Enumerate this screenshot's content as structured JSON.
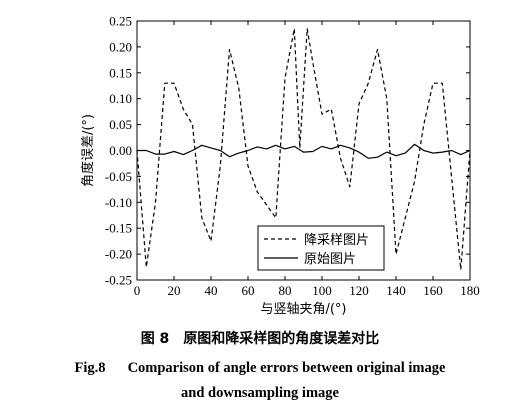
{
  "chart_data": {
    "type": "line",
    "xlabel": "与竖轴夹角/(°)",
    "ylabel": "角度误差/(°)",
    "xlim": [
      0,
      180
    ],
    "ylim": [
      -0.25,
      0.25
    ],
    "xticks": [
      0,
      20,
      40,
      60,
      80,
      100,
      120,
      140,
      160,
      180
    ],
    "yticks": [
      -0.25,
      -0.2,
      -0.15,
      -0.1,
      -0.05,
      0.0,
      0.05,
      0.1,
      0.15,
      0.2,
      0.25
    ],
    "ytick_labels": [
      "-0.25",
      "-0.20",
      "-0.15",
      "-0.10",
      "-0.05",
      "0.00",
      "0.05",
      "0.10",
      "0.15",
      "0.20",
      "0.25"
    ],
    "legend_position": "lower-right",
    "grid": false,
    "series": [
      {
        "name": "降采样图片",
        "style": "dashed",
        "color": "#000000",
        "x": [
          0,
          5,
          10,
          15,
          20,
          25,
          30,
          35,
          40,
          45,
          50,
          55,
          60,
          65,
          70,
          75,
          80,
          85,
          88,
          92,
          95,
          100,
          105,
          110,
          115,
          120,
          125,
          130,
          135,
          140,
          145,
          150,
          155,
          160,
          165,
          170,
          175,
          180
        ],
        "y": [
          0.0,
          -0.225,
          -0.1,
          0.13,
          0.13,
          0.08,
          0.05,
          -0.13,
          -0.175,
          -0.03,
          0.195,
          0.12,
          -0.03,
          -0.08,
          -0.105,
          -0.13,
          0.14,
          0.235,
          0.005,
          0.235,
          0.17,
          0.07,
          0.08,
          -0.015,
          -0.07,
          0.09,
          0.13,
          0.195,
          0.1,
          -0.2,
          -0.13,
          -0.06,
          0.05,
          0.13,
          0.13,
          -0.05,
          -0.23,
          0.0
        ]
      },
      {
        "name": "原始图片",
        "style": "solid",
        "color": "#000000",
        "x": [
          0,
          5,
          10,
          15,
          20,
          25,
          30,
          35,
          40,
          45,
          50,
          55,
          60,
          65,
          70,
          75,
          80,
          85,
          90,
          95,
          100,
          105,
          110,
          115,
          120,
          125,
          130,
          135,
          140,
          145,
          150,
          155,
          160,
          165,
          170,
          175,
          180
        ],
        "y": [
          0.0,
          0.0,
          -0.007,
          -0.007,
          -0.002,
          -0.008,
          0.0,
          0.01,
          0.005,
          0.0,
          -0.012,
          -0.005,
          0.0,
          0.007,
          0.003,
          0.01,
          0.003,
          0.008,
          -0.003,
          -0.002,
          0.008,
          0.003,
          0.01,
          0.005,
          -0.003,
          -0.015,
          -0.013,
          -0.003,
          -0.01,
          -0.005,
          0.012,
          0.0,
          -0.005,
          -0.003,
          0.0,
          -0.008,
          0.0
        ]
      }
    ]
  },
  "caption": {
    "zh_label": "图 8",
    "zh_text": "原图和降采样图的角度误差对比",
    "en_label": "Fig.8",
    "en_line1": "Comparison of angle errors between original image",
    "en_line2": "and downsampling image"
  }
}
